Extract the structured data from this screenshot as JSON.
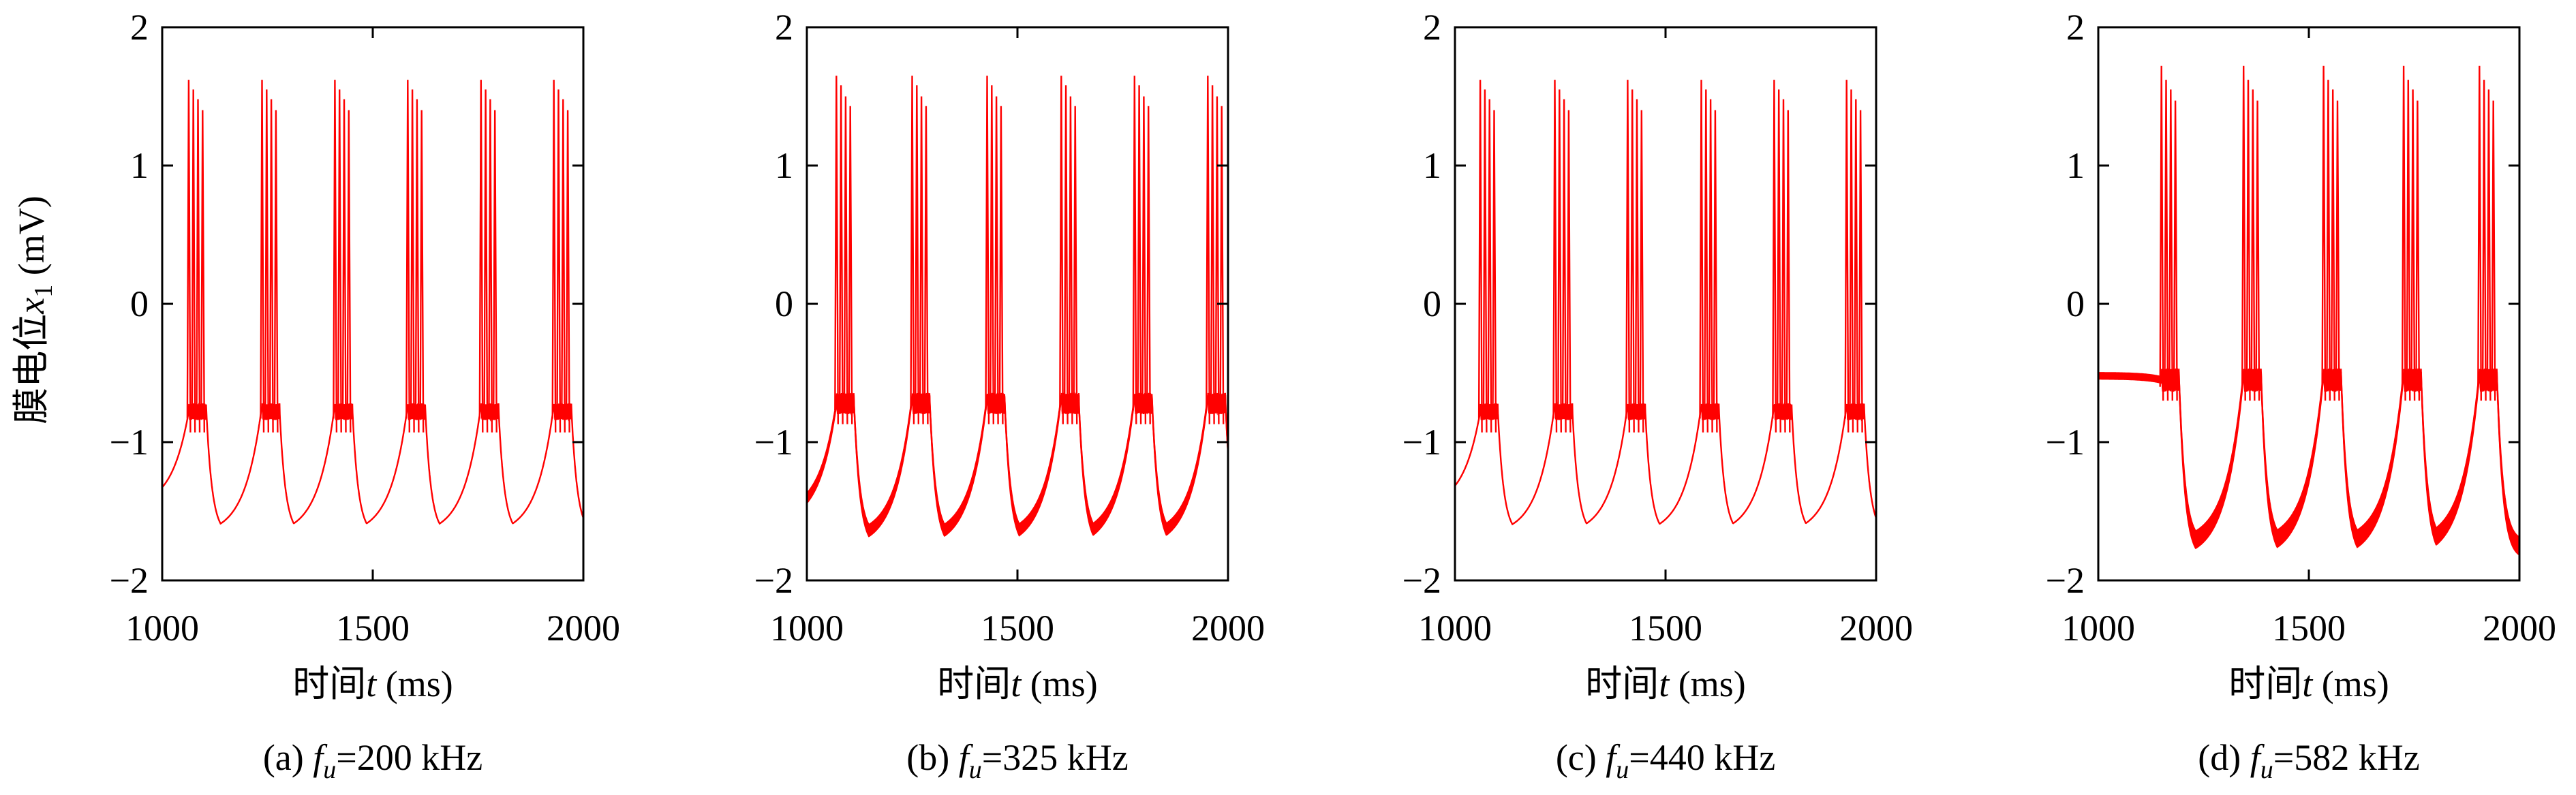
{
  "ylabel_prefix": "膜电位",
  "ylabel_var": "x",
  "ylabel_sub": "1",
  "ylabel_unit": " (mV)",
  "xlabel_prefix": "时间",
  "xlabel_var": "t",
  "xlabel_unit": " (ms)",
  "line_color": "#ff0000",
  "chart_data": [
    {
      "type": "line",
      "caption_prefix": "(a) ",
      "caption_var": "f",
      "caption_sub": "u",
      "caption_value": "=200 kHz",
      "xlim": [
        1000,
        2000
      ],
      "ylim": [
        -2,
        2
      ],
      "xticks": [
        1000,
        1500,
        2000
      ],
      "yticks": [
        -2,
        -1,
        0,
        1,
        2
      ],
      "burst_times": [
        1063,
        1237,
        1410,
        1583,
        1757,
        1930
      ],
      "spike_peaks": [
        1.62,
        1.55,
        1.48,
        1.4
      ],
      "plateau": -0.78,
      "trough": -1.67,
      "start_value": -1.47,
      "end_value": -1.65,
      "band_width": 0.0
    },
    {
      "type": "line",
      "caption_prefix": "(b) ",
      "caption_var": "f",
      "caption_sub": "u",
      "caption_value": "=325 kHz",
      "xlim": [
        1000,
        2000
      ],
      "ylim": [
        -2,
        2
      ],
      "xticks": [
        1000,
        1500,
        2000
      ],
      "yticks": [
        -2,
        -1,
        0,
        1,
        2
      ],
      "burst_times": [
        1070,
        1250,
        1428,
        1604,
        1778,
        1952
      ],
      "spike_peaks": [
        1.65,
        1.58,
        1.5,
        1.43
      ],
      "plateau": -0.72,
      "trough": -1.72,
      "start_value": -1.55,
      "end_value": -1.58,
      "band_width": 0.09
    },
    {
      "type": "line",
      "caption_prefix": "(c) ",
      "caption_var": "f",
      "caption_sub": "u",
      "caption_value": "=440 kHz",
      "xlim": [
        1000,
        2000
      ],
      "ylim": [
        -2,
        2
      ],
      "xticks": [
        1000,
        1500,
        2000
      ],
      "yticks": [
        -2,
        -1,
        0,
        1,
        2
      ],
      "burst_times": [
        1060,
        1237,
        1410,
        1585,
        1758,
        1930
      ],
      "spike_peaks": [
        1.62,
        1.55,
        1.48,
        1.4
      ],
      "plateau": -0.78,
      "trough": -1.67,
      "start_value": -1.47,
      "end_value": -1.65,
      "band_width": 0.0
    },
    {
      "type": "line",
      "caption_prefix": "(d) ",
      "caption_var": "f",
      "caption_sub": "u",
      "caption_value": "=582 kHz",
      "xlim": [
        1000,
        2000
      ],
      "ylim": [
        -2,
        2
      ],
      "xticks": [
        1000,
        1500,
        2000
      ],
      "yticks": [
        -2,
        -1,
        0,
        1,
        2
      ],
      "burst_times": [
        1150,
        1345,
        1535,
        1725,
        1905
      ],
      "spike_peaks": [
        1.72,
        1.62,
        1.55,
        1.47
      ],
      "plateau": -0.55,
      "trough": -1.78,
      "start_value": -0.52,
      "end_value": -1.72,
      "band_width": 0.13
    }
  ]
}
